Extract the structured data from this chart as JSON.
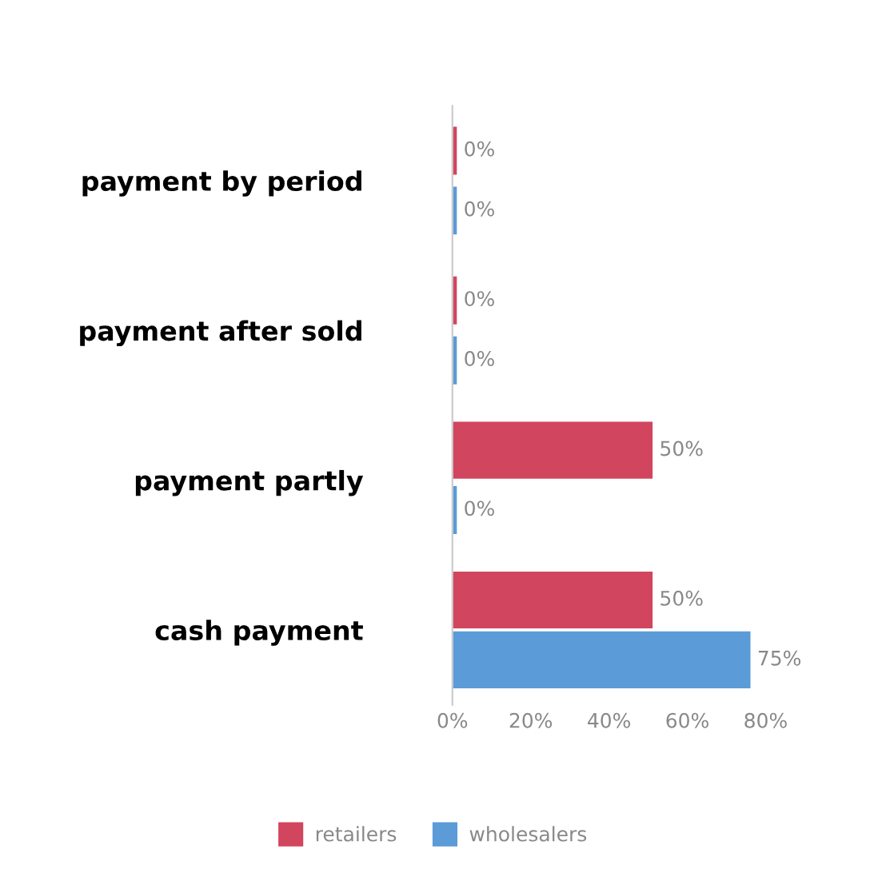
{
  "chart_data": {
    "type": "bar",
    "orientation": "horizontal",
    "categories": [
      "payment by period",
      "payment after sold",
      "payment partly",
      "cash payment"
    ],
    "series": [
      {
        "name": "retailers",
        "color": "#d2455f",
        "values": [
          0,
          0,
          50,
          50
        ],
        "value_labels": [
          "0%",
          "0%",
          "50%",
          "50%"
        ]
      },
      {
        "name": "wholesalers",
        "color": "#5b9bd8",
        "values": [
          0,
          0,
          0,
          75
        ],
        "value_labels": [
          "0%",
          "0%",
          "0%",
          "75%"
        ]
      }
    ],
    "xlim": [
      0,
      80
    ],
    "xticks": [
      {
        "value": 0,
        "label": "0%"
      },
      {
        "value": 20,
        "label": "20%"
      },
      {
        "value": 40,
        "label": "40%"
      },
      {
        "value": 60,
        "label": "60%"
      },
      {
        "value": 80,
        "label": "80%"
      }
    ],
    "grid": false,
    "legend": "bottom"
  }
}
